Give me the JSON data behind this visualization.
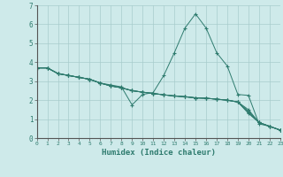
{
  "title": "",
  "xlabel": "Humidex (Indice chaleur)",
  "ylabel": "",
  "bg_color": "#ceeaea",
  "grid_color": "#a8cccc",
  "line_color": "#2e7b6e",
  "marker": "+",
  "ylim": [
    0,
    7
  ],
  "xlim": [
    0,
    23
  ],
  "yticks": [
    0,
    1,
    2,
    3,
    4,
    5,
    6,
    7
  ],
  "xticks": [
    0,
    1,
    2,
    3,
    4,
    5,
    6,
    7,
    8,
    9,
    10,
    11,
    12,
    13,
    14,
    15,
    16,
    17,
    18,
    19,
    20,
    21,
    22,
    23
  ],
  "series": [
    {
      "x": [
        0,
        1,
        2,
        3,
        4,
        5,
        6,
        7,
        8,
        9,
        10,
        11,
        12,
        13,
        14,
        15,
        16,
        17,
        18,
        19,
        20,
        21,
        22,
        23
      ],
      "y": [
        3.7,
        3.7,
        3.4,
        3.3,
        3.2,
        3.1,
        2.9,
        2.8,
        2.7,
        1.75,
        2.3,
        2.4,
        3.3,
        4.5,
        5.8,
        6.55,
        5.8,
        4.5,
        3.8,
        2.3,
        2.25,
        0.75,
        0.62,
        0.42
      ]
    },
    {
      "x": [
        0,
        1,
        2,
        3,
        4,
        5,
        6,
        7,
        8,
        9,
        10,
        11,
        12,
        13,
        14,
        15,
        16,
        17,
        18,
        19,
        20,
        21,
        22,
        23
      ],
      "y": [
        3.7,
        3.7,
        3.4,
        3.3,
        3.2,
        3.1,
        2.9,
        2.75,
        2.65,
        2.5,
        2.42,
        2.35,
        2.28,
        2.22,
        2.18,
        2.12,
        2.1,
        2.05,
        2.0,
        1.9,
        1.3,
        0.82,
        0.62,
        0.42
      ]
    },
    {
      "x": [
        0,
        1,
        2,
        3,
        4,
        5,
        6,
        7,
        8,
        9,
        10,
        11,
        12,
        13,
        14,
        15,
        16,
        17,
        18,
        19,
        20,
        21,
        22,
        23
      ],
      "y": [
        3.7,
        3.7,
        3.4,
        3.3,
        3.2,
        3.1,
        2.9,
        2.75,
        2.65,
        2.5,
        2.42,
        2.35,
        2.28,
        2.22,
        2.18,
        2.12,
        2.1,
        2.05,
        2.0,
        1.9,
        1.35,
        0.82,
        0.62,
        0.42
      ]
    },
    {
      "x": [
        0,
        1,
        2,
        3,
        4,
        5,
        6,
        7,
        8,
        9,
        10,
        11,
        12,
        13,
        14,
        15,
        16,
        17,
        18,
        19,
        20,
        21,
        22,
        23
      ],
      "y": [
        3.7,
        3.7,
        3.4,
        3.3,
        3.2,
        3.1,
        2.9,
        2.75,
        2.65,
        2.5,
        2.42,
        2.35,
        2.28,
        2.22,
        2.18,
        2.12,
        2.1,
        2.05,
        2.0,
        1.9,
        1.42,
        0.82,
        0.62,
        0.42
      ]
    },
    {
      "x": [
        0,
        1,
        2,
        3,
        4,
        5,
        6,
        7,
        8,
        9,
        10,
        11,
        12,
        13,
        14,
        15,
        16,
        17,
        18,
        19,
        20,
        21,
        22,
        23
      ],
      "y": [
        3.7,
        3.7,
        3.4,
        3.3,
        3.2,
        3.1,
        2.9,
        2.75,
        2.65,
        2.5,
        2.42,
        2.35,
        2.28,
        2.22,
        2.18,
        2.12,
        2.1,
        2.05,
        2.0,
        1.9,
        1.5,
        0.82,
        0.62,
        0.42
      ]
    }
  ]
}
